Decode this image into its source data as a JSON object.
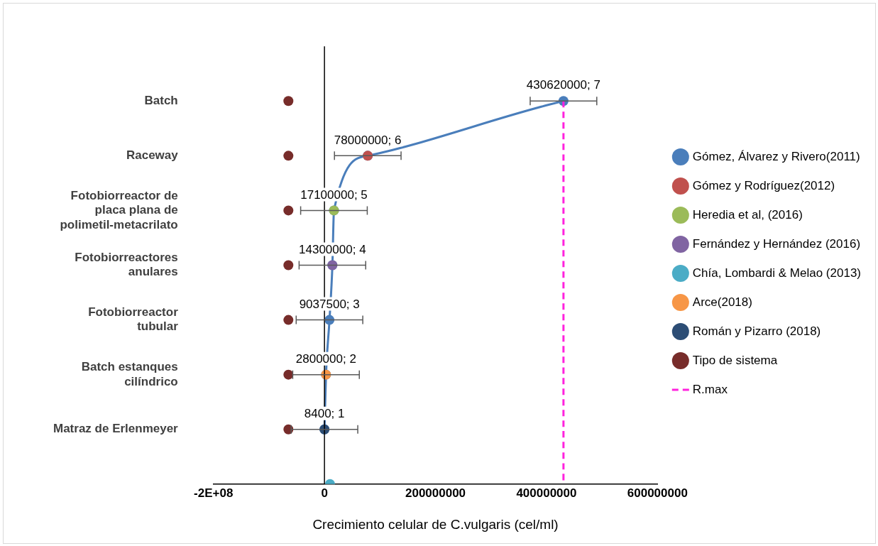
{
  "chart_data": {
    "type": "scatter",
    "orientation": "horizontal",
    "xlabel": "Crecimiento celular de C.vulgaris (cel/ml)",
    "xlim": [
      -200000000,
      600000000
    ],
    "xticks": [
      {
        "value": -200000000,
        "label": "-2E+08"
      },
      0,
      200000000,
      400000000,
      600000000
    ],
    "categories": [
      null,
      "Batch",
      "Raceway",
      "Fotobiorreactor de placa plana de polimetil-metacrilato",
      "Fotobiorreactores anulares",
      "Fotobiorreactor tubular",
      "Batch estanques cilíndrico",
      "Matraz de Erlenmeyer",
      null
    ],
    "grid": false,
    "ref_lines": [
      {
        "axis": "x",
        "value": 0,
        "color": "#000000"
      }
    ],
    "legend": "right",
    "marker": "circle",
    "series": [
      {
        "name": "Gómez, Álvarez y Rivero(2011)",
        "type": "line",
        "color": "#4a7ebb",
        "values": [
          null,
          430620000,
          78000000,
          17100000,
          14300000,
          9037500,
          2800000,
          8400,
          null
        ],
        "errors": [
          null,
          60000000,
          60000000,
          60000000,
          60000000,
          60000000,
          60000000,
          60000000,
          null
        ],
        "value_labels": [
          null,
          "430620000; 7",
          "78000000; 6",
          "17100000; 5",
          "14300000; 4",
          "9037500; 3",
          "2800000; 2",
          "8400; 1",
          null
        ]
      },
      {
        "name": "Gómez y Rodríguez(2012)",
        "type": "line",
        "color": "#c0504d",
        "values": [
          null,
          null,
          78000000,
          null,
          null,
          null,
          null,
          null,
          null
        ]
      },
      {
        "name": "Heredia et al, (2016)",
        "type": "line",
        "color": "#9bbb59",
        "values": [
          null,
          null,
          null,
          17100000,
          null,
          null,
          null,
          null,
          null
        ]
      },
      {
        "name": "Fernández y Hernández (2016)",
        "type": "line",
        "color": "#8064a2",
        "values": [
          null,
          null,
          null,
          null,
          14300000,
          null,
          null,
          null,
          null
        ]
      },
      {
        "name": "Chía, Lombardi & Melao (2013)",
        "type": "line",
        "color": "#4bacc6",
        "values": [
          null,
          null,
          null,
          null,
          null,
          null,
          null,
          null,
          10000000
        ]
      },
      {
        "name": "Arce(2018)",
        "type": "line",
        "color": "#f79646",
        "values": [
          null,
          null,
          null,
          null,
          null,
          null,
          2800000,
          null,
          null
        ]
      },
      {
        "name": "Román y Pizarro (2018)",
        "type": "line",
        "color": "#2c4d75",
        "values": [
          null,
          null,
          null,
          null,
          null,
          null,
          null,
          8400,
          null
        ]
      },
      {
        "name": "Tipo de sistema",
        "color": "#772c2a",
        "values": [
          null,
          -65000000,
          -65000000,
          -65000000,
          -65000000,
          -65000000,
          -65000000,
          -65000000,
          null
        ]
      },
      {
        "name": "R.max",
        "type": "line",
        "color": "#ff22dd",
        "marker": "none",
        "line_style": "dashed",
        "values": [
          null,
          430620000,
          430620000,
          430620000,
          430620000,
          430620000,
          430620000,
          430620000,
          430620000
        ]
      }
    ]
  }
}
